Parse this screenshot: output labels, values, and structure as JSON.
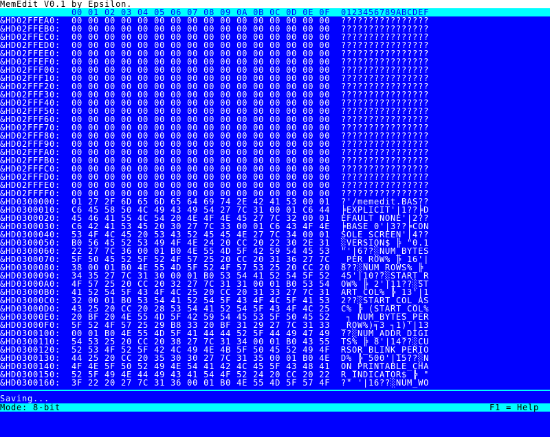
{
  "title": "MemEdit V0.1 by Epsilon.",
  "header": {
    "hex": "00 01 02 03 04 05 06 07 08 09 0A 0B 0C 0D 0E 0F",
    "ascii": "0123456789ABCDEF"
  },
  "rows": [
    {
      "address": "&HD02FFEA0:",
      "hex": "00 00 00 00 00 00 00 00 00 00 00 00 00 00 00 00",
      "ascii": "????????????????"
    },
    {
      "address": "&HD02FFEB0:",
      "hex": "00 00 00 00 00 00 00 00 00 00 00 00 00 00 00 00",
      "ascii": "????????????????"
    },
    {
      "address": "&HD02FFEC0:",
      "hex": "00 00 00 00 00 00 00 00 00 00 00 00 00 00 00 00",
      "ascii": "????????????????"
    },
    {
      "address": "&HD02FFED0:",
      "hex": "00 00 00 00 00 00 00 00 00 00 00 00 00 00 00 00",
      "ascii": "????????????????"
    },
    {
      "address": "&HD02FFEE0:",
      "hex": "00 00 00 00 00 00 00 00 00 00 00 00 00 00 00 00",
      "ascii": "????????????????"
    },
    {
      "address": "&HD02FFEF0:",
      "hex": "00 00 00 00 00 00 00 00 00 00 00 00 00 00 00 00",
      "ascii": "????????????????"
    },
    {
      "address": "&HD02FFF00:",
      "hex": "00 00 00 00 00 00 00 00 00 00 00 00 00 00 00 00",
      "ascii": "????????????????"
    },
    {
      "address": "&HD02FFF10:",
      "hex": "00 00 00 00 00 00 00 00 00 00 00 00 00 00 00 00",
      "ascii": "????????????????"
    },
    {
      "address": "&HD02FFF20:",
      "hex": "00 00 00 00 00 00 00 00 00 00 00 00 00 00 00 00",
      "ascii": "????????????????"
    },
    {
      "address": "&HD02FFF30:",
      "hex": "00 00 00 00 00 00 00 00 00 00 00 00 00 00 00 00",
      "ascii": "????????????????"
    },
    {
      "address": "&HD02FFF40:",
      "hex": "00 00 00 00 00 00 00 00 00 00 00 00 00 00 00 00",
      "ascii": "????????????????"
    },
    {
      "address": "&HD02FFF50:",
      "hex": "00 00 00 00 00 00 00 00 00 00 00 00 00 00 00 00",
      "ascii": "????????????????"
    },
    {
      "address": "&HD02FFF60:",
      "hex": "00 00 00 00 00 00 00 00 00 00 00 00 00 00 00 00",
      "ascii": "????????????????"
    },
    {
      "address": "&HD02FFF70:",
      "hex": "00 00 00 00 00 00 00 00 00 00 00 00 00 00 00 00",
      "ascii": "????????????????"
    },
    {
      "address": "&HD02FFF80:",
      "hex": "00 00 00 00 00 00 00 00 00 00 00 00 00 00 00 00",
      "ascii": "????????????????"
    },
    {
      "address": "&HD02FFF90:",
      "hex": "00 00 00 00 00 00 00 00 00 00 00 00 00 00 00 00",
      "ascii": "????????????????"
    },
    {
      "address": "&HD02FFFA0:",
      "hex": "00 00 00 00 00 00 00 00 00 00 00 00 00 00 00 00",
      "ascii": "????????????????"
    },
    {
      "address": "&HD02FFFB0:",
      "hex": "00 00 00 00 00 00 00 00 00 00 00 00 00 00 00 00",
      "ascii": "????????????????"
    },
    {
      "address": "&HD02FFFC0:",
      "hex": "00 00 00 00 00 00 00 00 00 00 00 00 00 00 00 00",
      "ascii": "????????????????"
    },
    {
      "address": "&HD02FFFD0:",
      "hex": "00 00 00 00 00 00 00 00 00 00 00 00 00 00 00 00",
      "ascii": "????????????????"
    },
    {
      "address": "&HD02FFFE0:",
      "hex": "00 00 00 00 00 00 00 00 00 00 00 00 00 00 00 00",
      "ascii": "????????????????"
    },
    {
      "address": "&HD02FFFF0:",
      "hex": "00 00 00 00 00 00 00 00 00 00 00 00 00 00 00 00",
      "ascii": "????????????????"
    },
    {
      "address": "&HD0300000:",
      "hex": "01 27 2F 6D 65 6D 65 64 69 74 2E 42 41 53 00 01",
      "ascii": "?'/memedit.BAS??"
    },
    {
      "address": "&HD0300010:",
      "hex": "C6 45 58 50 4C 49 43 49 54 27 7C 31 00 01 C6 44",
      "ascii": "╞EXPLICIT'|1??╞D"
    },
    {
      "address": "&HD0300020:",
      "hex": "45 46 41 55 4C 54 20 4E 4F 4E 45 27 7C 32 00 01",
      "ascii": "EFAULT NONE'|2??"
    },
    {
      "address": "&HD0300030:",
      "hex": "C6 42 41 53 45 20 30 27 7C 33 00 01 C6 43 4F 4E",
      "ascii": "╞BASE 0'|3??╞CON"
    },
    {
      "address": "&HD0300040:",
      "hex": "53 4F 4C 45 20 53 43 52 45 45 4E 27 7C 34 00 01",
      "ascii": "SOLE SCREEN'|4??"
    },
    {
      "address": "&HD0300050:",
      "hex": "B0 56 45 52 53 49 4F 4E 24 20 CC 20 22 30 2E 31",
      "ascii": "░VERSION$ ╠ \"0.1"
    },
    {
      "address": "&HD0300060:",
      "hex": "22 27 7C 36 00 01 B0 4E 55 4D 5F 42 59 54 45 53",
      "ascii": "\"'|6??░NUM_BYTES"
    },
    {
      "address": "&HD0300070:",
      "hex": "5F 50 45 52 5F 52 4F 57 25 20 CC 20 31 36 27 7C",
      "ascii": "_PER_ROW% ╠ 16'|"
    },
    {
      "address": "&HD0300080:",
      "hex": "38 00 01 B0 4E 55 4D 5F 52 4F 57 53 25 20 CC 20",
      "ascii": "8??░NUM_ROWS% ╠ "
    },
    {
      "address": "&HD0300090:",
      "hex": "34 35 27 7C 31 30 00 01 B0 53 54 41 52 54 5F 52",
      "ascii": "45'|10??░START_R"
    },
    {
      "address": "&HD03000A0:",
      "hex": "4F 57 25 20 CC 20 32 27 7C 31 31 00 01 B0 53 54",
      "ascii": "OW% ╠ 2'|11??░ST"
    },
    {
      "address": "&HD03000B0:",
      "hex": "41 52 54 5F 43 4F 4C 25 20 CC 20 31 33 27 7C 31",
      "ascii": "ART_COL% ╠ 13'|1"
    },
    {
      "address": "&HD03000C0:",
      "hex": "32 00 01 B0 53 54 41 52 54 5F 43 4F 4C 5F 41 53",
      "ascii": "2??░START_COL_AS"
    },
    {
      "address": "&HD03000D0:",
      "hex": "43 25 20 CC 20 28 53 54 41 52 54 5F 43 4F 4C 25",
      "ascii": "C% ╠ (START_COL%"
    },
    {
      "address": "&HD03000E0:",
      "hex": "20 BF 20 4E 55 4D 5F 42 59 54 45 53 5F 50 45 52",
      "ascii": " ┐ NUM_BYTES_PER"
    },
    {
      "address": "&HD03000F0:",
      "hex": "5F 52 4F 57 25 29 B8 33 20 BF 31 29 27 7C 31 33",
      "ascii": "_ROW%)╕3 ┐1)'|13"
    },
    {
      "address": "&HD0300100:",
      "hex": "00 01 B0 4E 55 4D 5F 41 44 44 52 5F 44 49 47 49",
      "ascii": "??░NUM_ADDR_DIGI"
    },
    {
      "address": "&HD0300110:",
      "hex": "54 53 25 20 CC 20 38 27 7C 31 34 00 01 B0 43 55",
      "ascii": "TS% ╠ 8'|14??░CU"
    },
    {
      "address": "&HD0300120:",
      "hex": "52 53 4F 52 5F 42 4C 49 4E 4B 5F 50 45 52 49 4F",
      "ascii": "RSOR_BLINK_PERIO"
    },
    {
      "address": "&HD0300130:",
      "hex": "44 25 20 CC 20 35 30 30 27 7C 31 35 00 01 B0 4E",
      "ascii": "D% ╠ 500'|15??░N"
    },
    {
      "address": "&HD0300140:",
      "hex": "4F 4E 5F 50 52 49 4E 54 41 42 4C 45 5F 43 48 41",
      "ascii": "ON_PRINTABLE_CHA"
    },
    {
      "address": "&HD0300150:",
      "hex": "52 5F 49 4E 44 49 43 41 54 4F 52 24 20 CC 20 22",
      "ascii": "R_INDICATOR$ ╠ \""
    },
    {
      "address": "&HD0300160:",
      "hex": "3F 22 20 27 7C 31 36 00 01 B0 4E 55 4D 5F 57 4F",
      "ascii": "?\" '|16??░NUM_WO"
    }
  ],
  "status_message": "Saving...",
  "status_bar": {
    "mode": "Mode: 8-bit",
    "help": "F1 = Help"
  }
}
